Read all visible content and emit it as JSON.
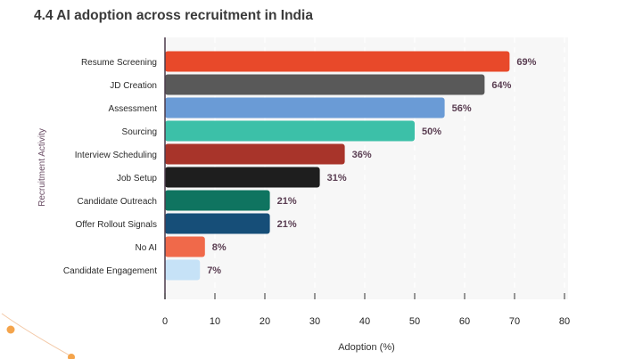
{
  "chart_data": {
    "type": "bar",
    "orientation": "horizontal",
    "title": "4.4 AI adoption across recruitment in India",
    "xlabel": "Adoption (%)",
    "ylabel": "Recruitment Activity",
    "xlim": [
      0,
      80
    ],
    "xticks": [
      0,
      10,
      20,
      30,
      40,
      50,
      60,
      70,
      80
    ],
    "grid": "vertical dashed",
    "categories": [
      "Resume Screening",
      "JD Creation",
      "Assessment",
      "Sourcing",
      "Interview Scheduling",
      "Job Setup",
      "Candidate Outreach",
      "Offer Rollout Signals",
      "No AI",
      "Candidate Engagement"
    ],
    "values": [
      69,
      64,
      56,
      50,
      36,
      31,
      21,
      21,
      8,
      7
    ],
    "value_labels": [
      "69%",
      "64%",
      "56%",
      "50%",
      "36%",
      "31%",
      "21%",
      "21%",
      "8%",
      "7%"
    ],
    "colors": [
      "#e8492a",
      "#595959",
      "#6a9bd6",
      "#3cc0a8",
      "#a8342a",
      "#1e1e1e",
      "#0f7460",
      "#164e78",
      "#f0694a",
      "#c6e2f7"
    ],
    "label_color": "#5a3e52",
    "plot_background": "#f7f7f7"
  }
}
